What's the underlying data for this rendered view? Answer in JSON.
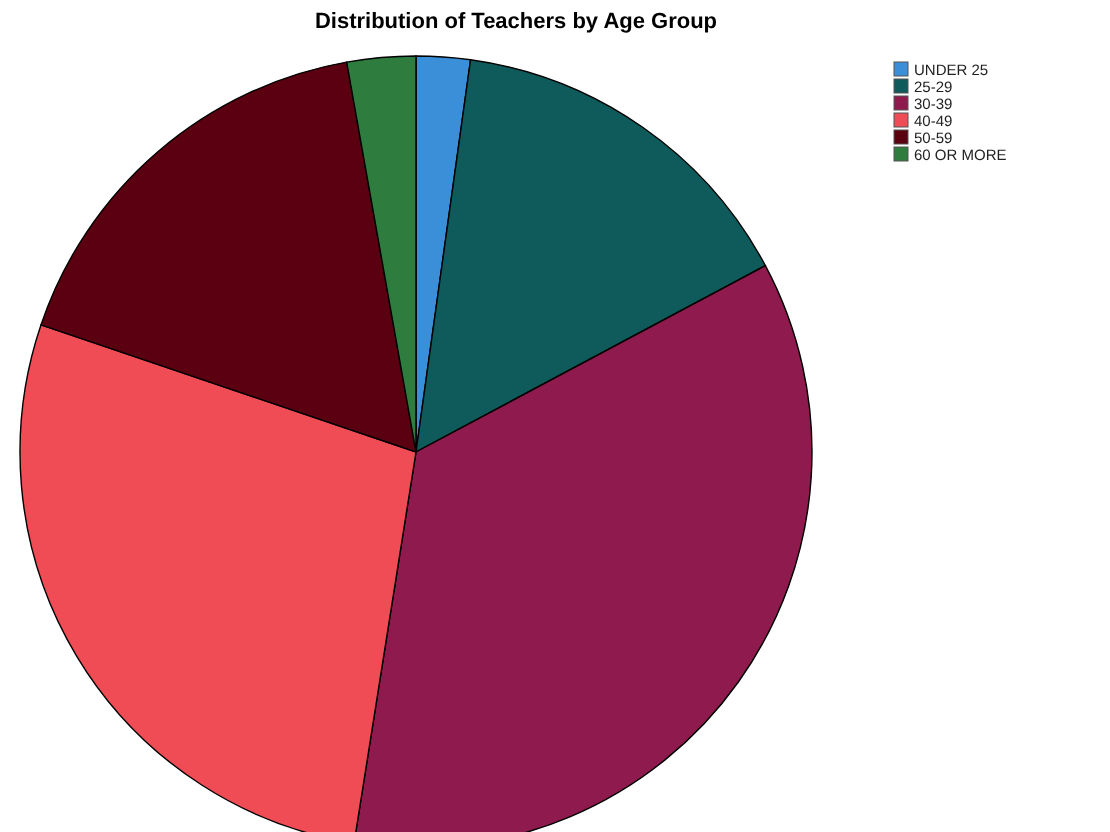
{
  "chart_data": {
    "type": "pie",
    "title": "Distribution of Teachers by Age Group",
    "categories": [
      "UNDER 25",
      "25-29",
      "30-39",
      "40-49",
      "50-59",
      "60 OR MORE"
    ],
    "values": [
      2.2,
      15,
      35.3,
      27.7,
      17,
      2.8
    ],
    "colors": [
      "#3a8fd8",
      "#0f5a5a",
      "#8f1a4e",
      "#f04c55",
      "#5a0010",
      "#2e7d3e"
    ],
    "legend": "top right"
  }
}
